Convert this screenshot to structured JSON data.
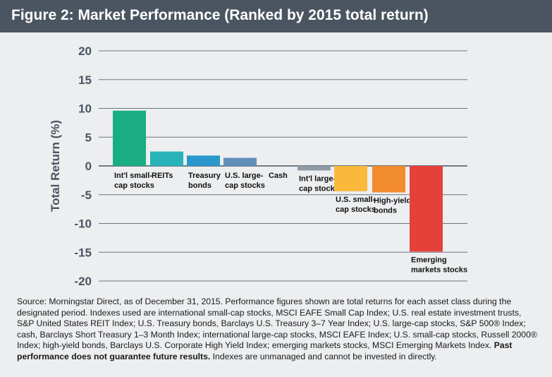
{
  "title": "Figure 2: Market Performance (Ranked by 2015 total return)",
  "chart_data": {
    "type": "bar",
    "ylabel": "Total Return (%)",
    "ylim": [
      -20,
      20
    ],
    "yticks": [
      20,
      15,
      10,
      5,
      0,
      -5,
      -10,
      -15,
      -20
    ],
    "grid": true,
    "categories": [
      [
        "Int'l small-",
        "cap stocks"
      ],
      [
        "REITs"
      ],
      [
        "Treasury",
        "bonds"
      ],
      [
        "U.S. large-",
        "cap stocks"
      ],
      [
        "Cash"
      ],
      [
        "Int'l large-",
        "cap stocks"
      ],
      [
        "U.S. small-",
        "cap stocks"
      ],
      [
        "High-yield",
        "bonds"
      ],
      [
        "Emerging",
        "markets stocks"
      ]
    ],
    "values": [
      9.6,
      2.5,
      1.8,
      1.4,
      0.0,
      -0.8,
      -4.4,
      -4.6,
      -14.9
    ],
    "colors": [
      "#1aad84",
      "#27b3b8",
      "#2a97cc",
      "#5f8fb8",
      "#9aa5b1",
      "#8e9aa6",
      "#fbb83a",
      "#f28a2e",
      "#e5413a"
    ]
  },
  "source": {
    "text": "Source: Morningstar Direct, as of December 31, 2015. Performance figures shown are total returns for each asset class during the designated period. Indexes used are international small-cap stocks, MSCI EAFE Small Cap Index; U.S. real estate investment trusts, S&P United States REIT Index; U.S. Treasury bonds, Barclays U.S. Treasury 3–7 Year Index; U.S. large-cap stocks, S&P 500® Index; cash, Barclays Short Treasury 1–3 Month Index; international large-cap stocks, MSCI EAFE Index; U.S. small-cap stocks, Russell 2000® Index; high-yield bonds, Barclays U.S. Corporate High Yield  Index; emerging markets stocks, MSCI Emerging Markets Index. ",
    "bold": "Past performance does not guarantee future results.",
    "tail": " Indexes are unmanaged and cannot be invested in directly."
  }
}
